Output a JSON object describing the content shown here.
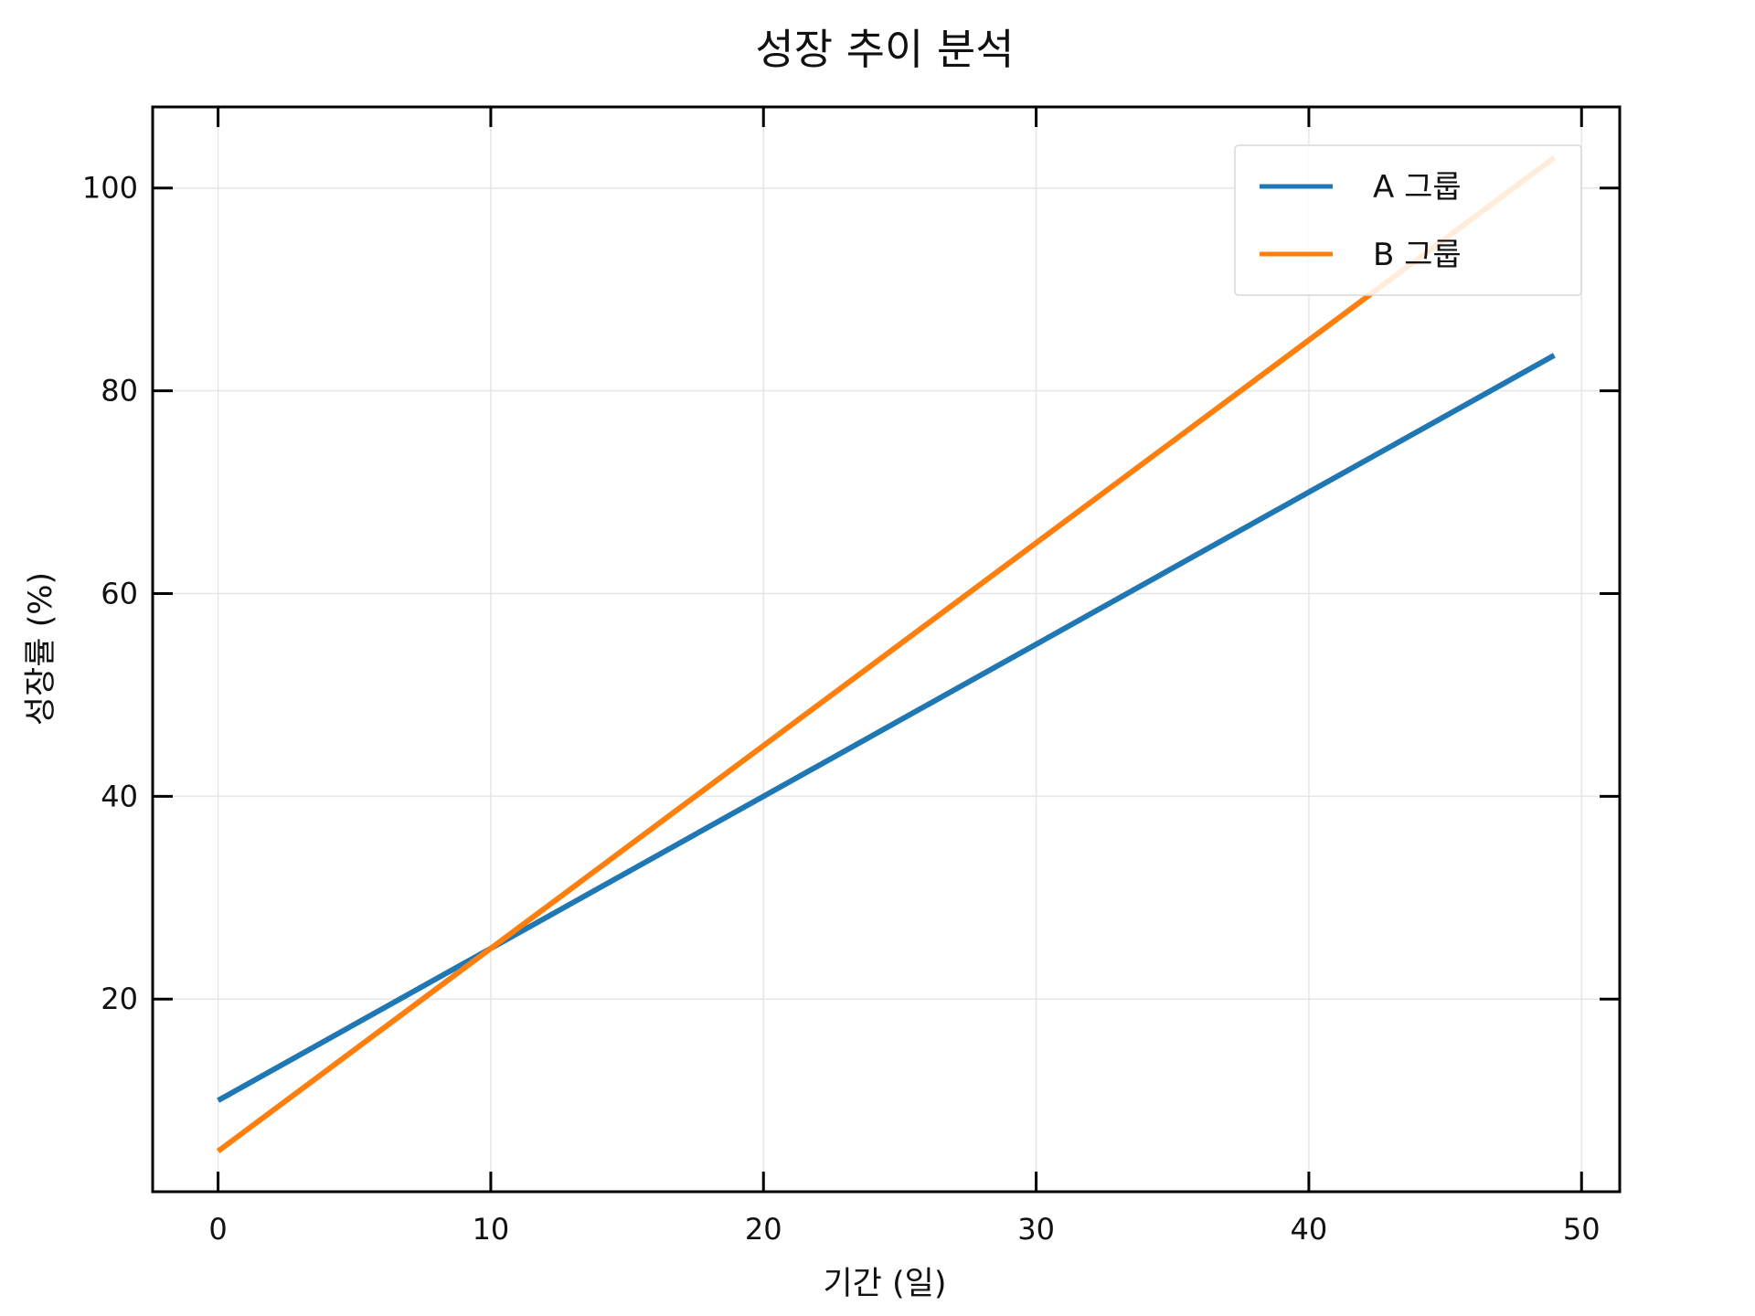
{
  "chart_data": {
    "type": "line",
    "title": "성장 추이 분석",
    "xlabel": "기간 (일)",
    "ylabel": "성장률 (%)",
    "xlim": [
      -2.4,
      51.4
    ],
    "ylim": [
      1.0,
      108.0
    ],
    "xticks": [
      0,
      10,
      20,
      30,
      40,
      50
    ],
    "yticks": [
      20,
      40,
      60,
      80,
      100
    ],
    "grid": true,
    "legend_position": "top-right",
    "series": [
      {
        "name": "A 그룹",
        "color": "#1f77b4",
        "x": [
          0,
          10,
          20,
          30,
          40,
          49
        ],
        "y": [
          10,
          25,
          40,
          55,
          70,
          83.5
        ]
      },
      {
        "name": "B 그룹",
        "color": "#ff7f0e",
        "x": [
          0,
          10,
          20,
          30,
          40,
          49
        ],
        "y": [
          5,
          25,
          45,
          65,
          85,
          103
        ]
      }
    ]
  }
}
